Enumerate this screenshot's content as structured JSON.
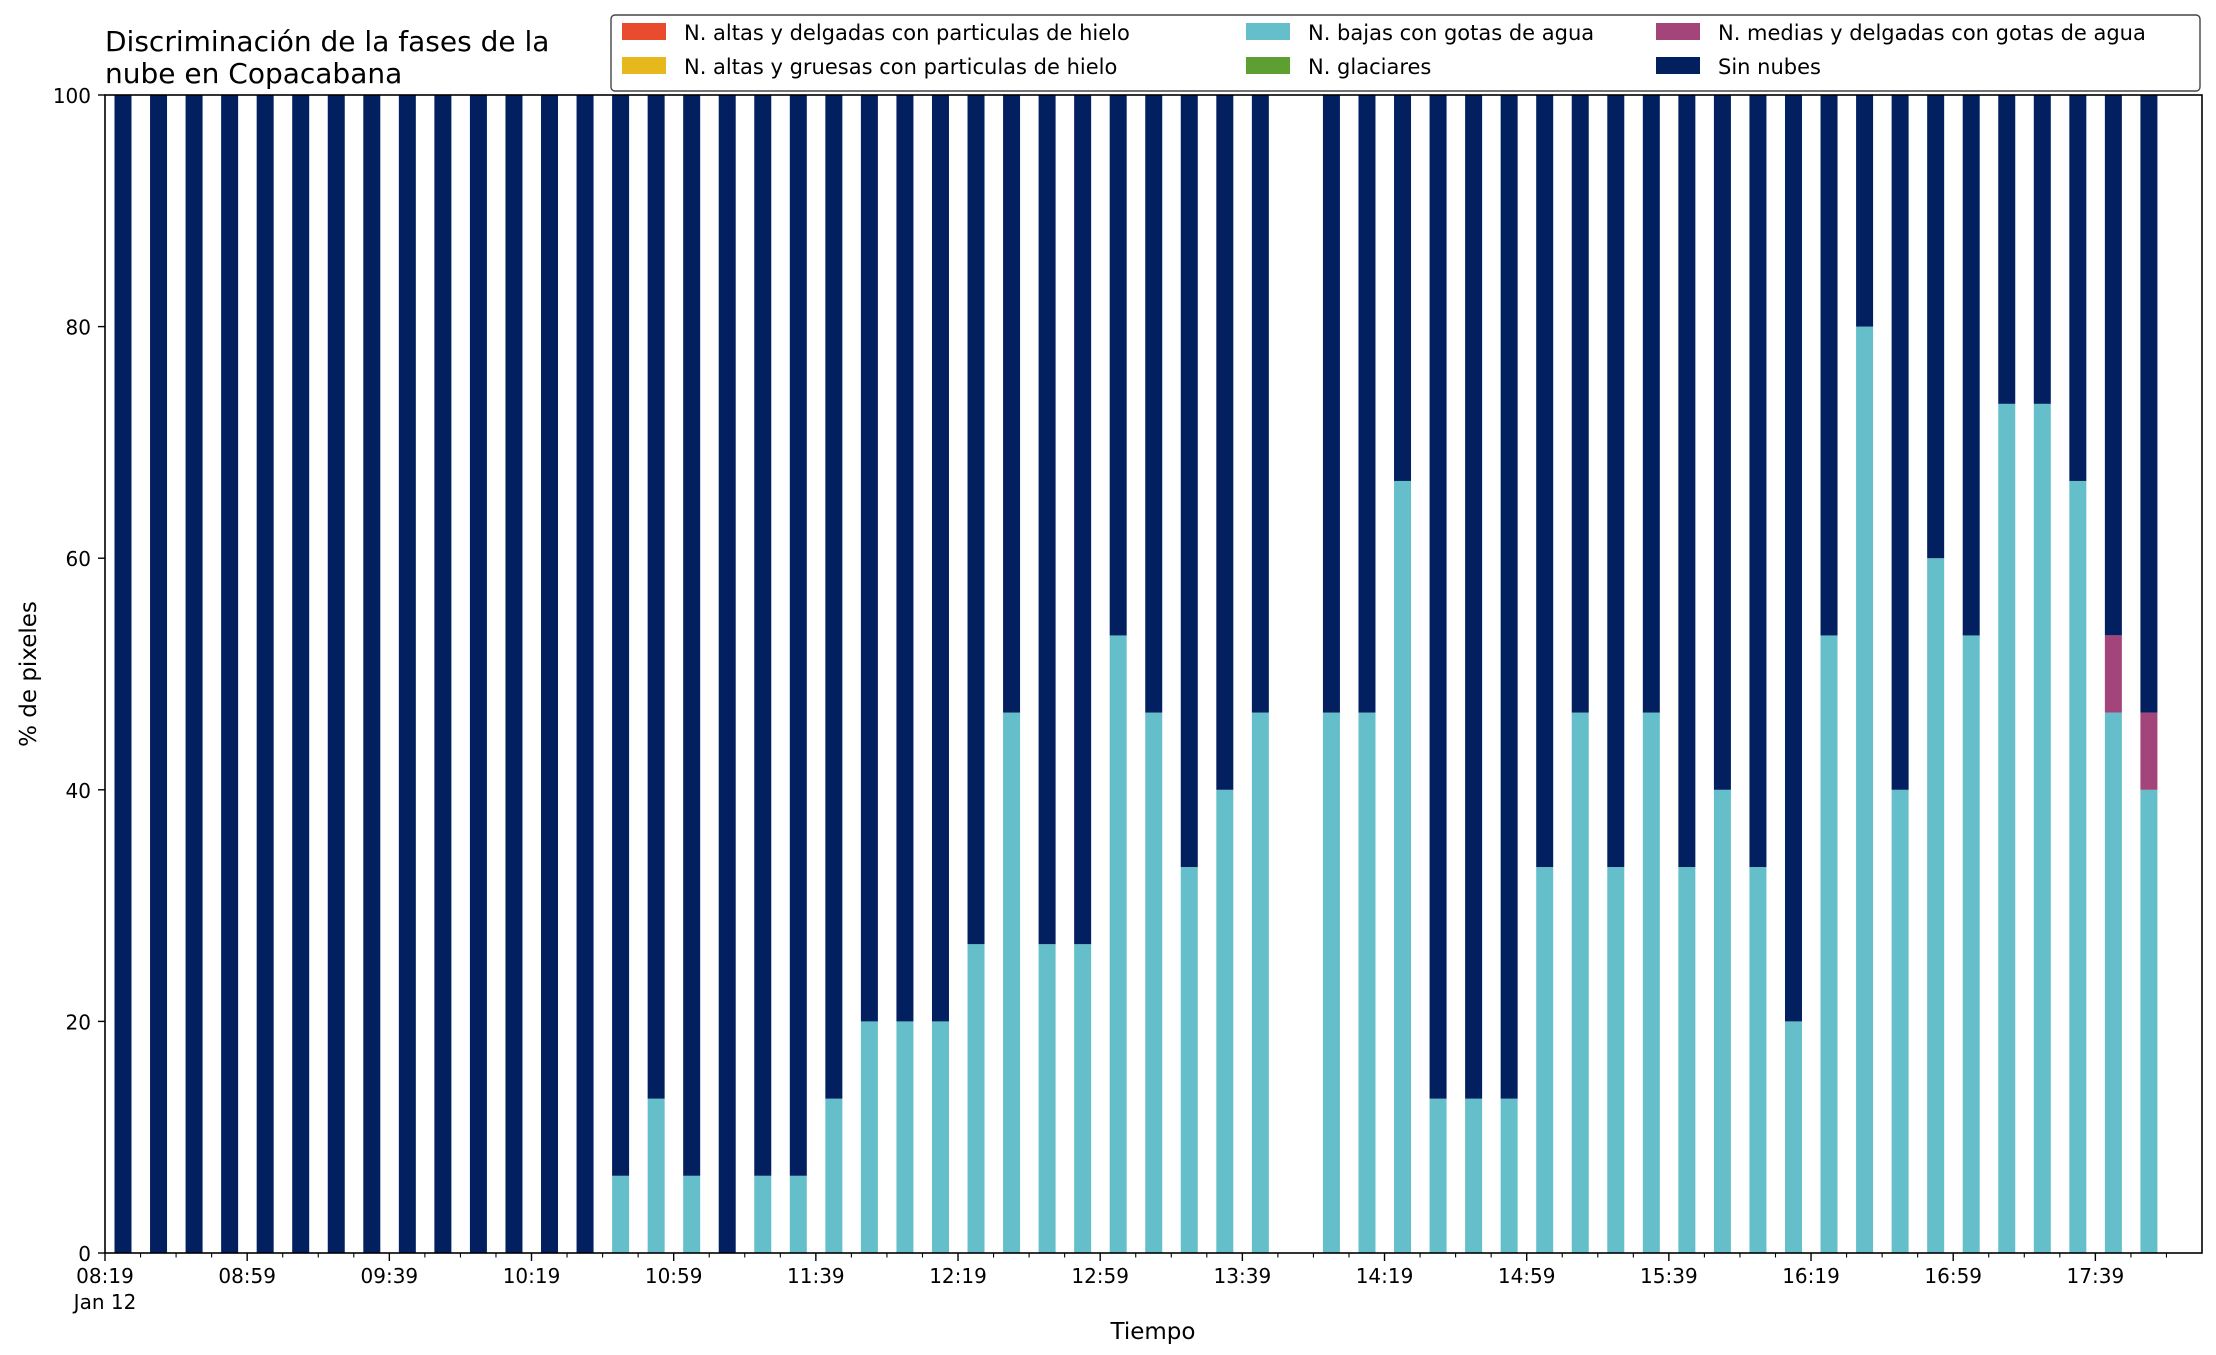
{
  "chart_data": {
    "type": "bar",
    "stacked": true,
    "title": "Discriminación de la fases de la\nnube en Copacabana",
    "xlabel": "Tiempo",
    "ylabel": "% de pixeles",
    "ylim": [
      0,
      100
    ],
    "yticks": [
      0,
      20,
      40,
      60,
      80,
      100
    ],
    "xlim_min": 0,
    "xlim_max": 590,
    "x_date_label": "Jan 12",
    "x_tick_labels": [
      "08:19",
      "08:59",
      "09:39",
      "10:19",
      "10:59",
      "11:39",
      "12:19",
      "12:59",
      "13:39",
      "14:19",
      "14:59",
      "15:39",
      "16:19",
      "16:59",
      "17:39"
    ],
    "x_tick_minutes_since_0819": [
      0,
      40,
      80,
      120,
      160,
      200,
      240,
      280,
      320,
      360,
      400,
      440,
      480,
      520,
      560
    ],
    "x_minor_tick_minutes_since_0819": [
      10,
      20,
      30,
      50,
      60,
      70,
      90,
      100,
      110,
      130,
      140,
      150,
      170,
      180,
      190,
      210,
      220,
      230,
      250,
      260,
      270,
      290,
      300,
      310,
      330,
      340,
      350,
      370,
      380,
      390,
      410,
      420,
      430,
      450,
      460,
      470,
      490,
      500,
      510,
      530,
      540,
      550,
      570,
      580
    ],
    "grid": false,
    "legend_position": "top-right",
    "legend_columns": 3,
    "legend": [
      {
        "name": "N. altas y delgadas con particulas de hielo",
        "color": "#e94b2e"
      },
      {
        "name": "N. altas y gruesas con particulas de hielo",
        "color": "#e6b81c"
      },
      {
        "name": "N. bajas con gotas de agua",
        "color": "#65bfca"
      },
      {
        "name": "N. glaciares",
        "color": "#5d9f31"
      },
      {
        "name": "N. medias y delgadas con gotas de agua",
        "color": "#a3457a"
      },
      {
        "name": "Sin nubes",
        "color": "#02205f"
      }
    ],
    "times": [
      "08:19",
      "08:29",
      "08:39",
      "08:49",
      "08:59",
      "09:09",
      "09:19",
      "09:29",
      "09:39",
      "09:49",
      "09:59",
      "10:09",
      "10:19",
      "10:29",
      "10:39",
      "10:49",
      "10:59",
      "11:09",
      "11:19",
      "11:29",
      "11:39",
      "11:49",
      "11:59",
      "12:09",
      "12:19",
      "12:29",
      "12:39",
      "12:49",
      "12:59",
      "13:09",
      "13:19",
      "13:29",
      "13:39",
      "13:59",
      "14:09",
      "14:19",
      "14:29",
      "14:39",
      "14:49",
      "14:59",
      "15:09",
      "15:19",
      "15:29",
      "15:39",
      "15:49",
      "15:59",
      "16:09",
      "16:19",
      "16:29",
      "16:39",
      "16:49",
      "16:59",
      "17:09",
      "17:19",
      "17:29",
      "17:39",
      "17:49"
    ],
    "series": [
      {
        "name": "N. altas y delgadas con particulas de hielo",
        "color": "#e94b2e",
        "values": [
          0,
          0,
          0,
          0,
          0,
          0,
          0,
          0,
          0,
          0,
          0,
          0,
          0,
          0,
          0,
          0,
          0,
          0,
          0,
          0,
          0,
          0,
          0,
          0,
          0,
          0,
          0,
          0,
          0,
          0,
          0,
          0,
          0,
          0,
          0,
          0,
          0,
          0,
          0,
          0,
          0,
          0,
          0,
          0,
          0,
          0,
          0,
          0,
          0,
          0,
          0,
          0,
          0,
          0,
          0,
          0,
          0
        ]
      },
      {
        "name": "N. altas y gruesas con particulas de hielo",
        "color": "#e6b81c",
        "values": [
          0,
          0,
          0,
          0,
          0,
          0,
          0,
          0,
          0,
          0,
          0,
          0,
          0,
          0,
          0,
          0,
          0,
          0,
          0,
          0,
          0,
          0,
          0,
          0,
          0,
          0,
          0,
          0,
          0,
          0,
          0,
          0,
          0,
          0,
          0,
          0,
          0,
          0,
          0,
          0,
          0,
          0,
          0,
          0,
          0,
          0,
          0,
          0,
          0,
          0,
          0,
          0,
          0,
          0,
          0,
          0,
          0
        ]
      },
      {
        "name": "N. bajas con gotas de agua",
        "color": "#65bfca",
        "values": [
          0,
          0,
          0,
          0,
          0,
          0,
          0,
          0,
          0,
          0,
          0,
          0,
          0,
          0,
          6.67,
          13.33,
          6.67,
          0,
          6.67,
          6.67,
          13.33,
          20,
          20,
          20,
          26.67,
          46.67,
          26.67,
          26.67,
          53.33,
          46.67,
          33.33,
          40,
          46.67,
          46.67,
          46.67,
          66.67,
          13.33,
          13.33,
          13.33,
          33.33,
          46.67,
          33.33,
          46.67,
          33.33,
          40,
          33.33,
          20,
          53.33,
          80,
          40,
          60,
          53.33,
          73.33,
          73.33,
          66.67,
          46.67,
          40
        ]
      },
      {
        "name": "N. glaciares",
        "color": "#5d9f31",
        "values": [
          0,
          0,
          0,
          0,
          0,
          0,
          0,
          0,
          0,
          0,
          0,
          0,
          0,
          0,
          0,
          0,
          0,
          0,
          0,
          0,
          0,
          0,
          0,
          0,
          0,
          0,
          0,
          0,
          0,
          0,
          0,
          0,
          0,
          0,
          0,
          0,
          0,
          0,
          0,
          0,
          0,
          0,
          0,
          0,
          0,
          0,
          0,
          0,
          0,
          0,
          0,
          0,
          0,
          0,
          0,
          0,
          0
        ]
      },
      {
        "name": "N. medias y delgadas con gotas de agua",
        "color": "#a3457a",
        "values": [
          0,
          0,
          0,
          0,
          0,
          0,
          0,
          0,
          0,
          0,
          0,
          0,
          0,
          0,
          0,
          0,
          0,
          0,
          0,
          0,
          0,
          0,
          0,
          0,
          0,
          0,
          0,
          0,
          0,
          0,
          0,
          0,
          0,
          0,
          0,
          0,
          0,
          0,
          0,
          0,
          0,
          0,
          0,
          0,
          0,
          0,
          0,
          0,
          0,
          0,
          0,
          0,
          0,
          0,
          0,
          6.67,
          6.67
        ]
      },
      {
        "name": "Sin nubes",
        "color": "#02205f",
        "values": [
          100,
          100,
          100,
          100,
          100,
          100,
          100,
          100,
          100,
          100,
          100,
          100,
          100,
          100,
          93.33,
          86.67,
          93.33,
          100,
          93.33,
          93.33,
          86.67,
          80,
          80,
          80,
          73.33,
          53.33,
          73.33,
          73.33,
          46.67,
          53.33,
          66.67,
          60,
          53.33,
          53.33,
          53.33,
          33.33,
          86.67,
          86.67,
          86.67,
          66.67,
          53.33,
          66.67,
          53.33,
          66.67,
          60,
          66.67,
          80,
          46.67,
          20,
          60,
          40,
          46.67,
          26.67,
          26.67,
          33.33,
          46.67,
          53.33
        ]
      }
    ]
  }
}
